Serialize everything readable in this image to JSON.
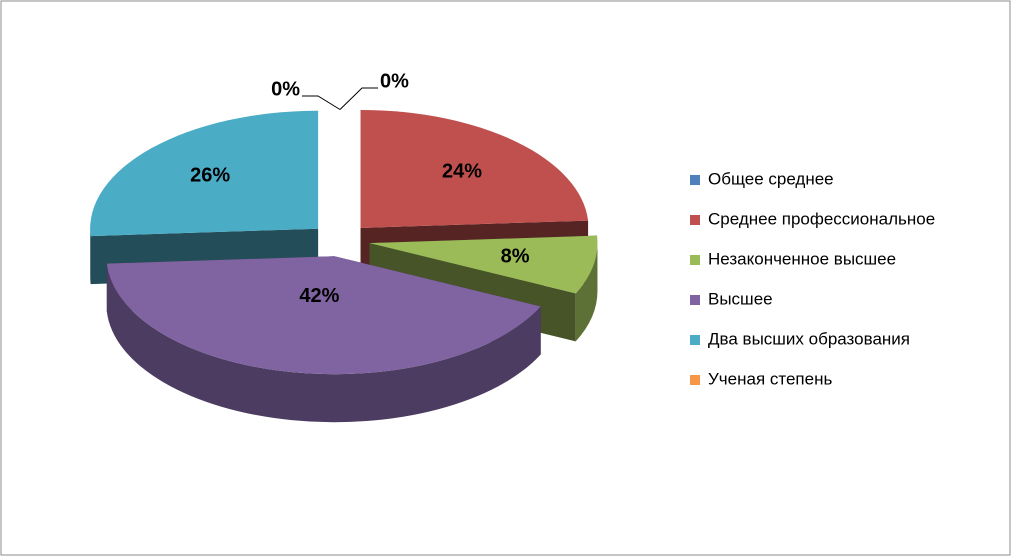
{
  "chart_data": {
    "type": "pie3d",
    "categories": [
      "Общее среднее",
      "Среднее профессиональное",
      "Незаконченное высшее",
      "Высшее",
      "Два высших образования",
      "Ученая степень"
    ],
    "values": [
      0,
      24,
      8,
      42,
      26,
      0
    ],
    "value_labels": [
      "0%",
      "24%",
      "8%",
      "42%",
      "26%",
      "0%"
    ],
    "colors": [
      "#4f81bd",
      "#c0504d",
      "#9bbb59",
      "#8064a2",
      "#4bacc6",
      "#f79646"
    ],
    "legend": "right"
  }
}
